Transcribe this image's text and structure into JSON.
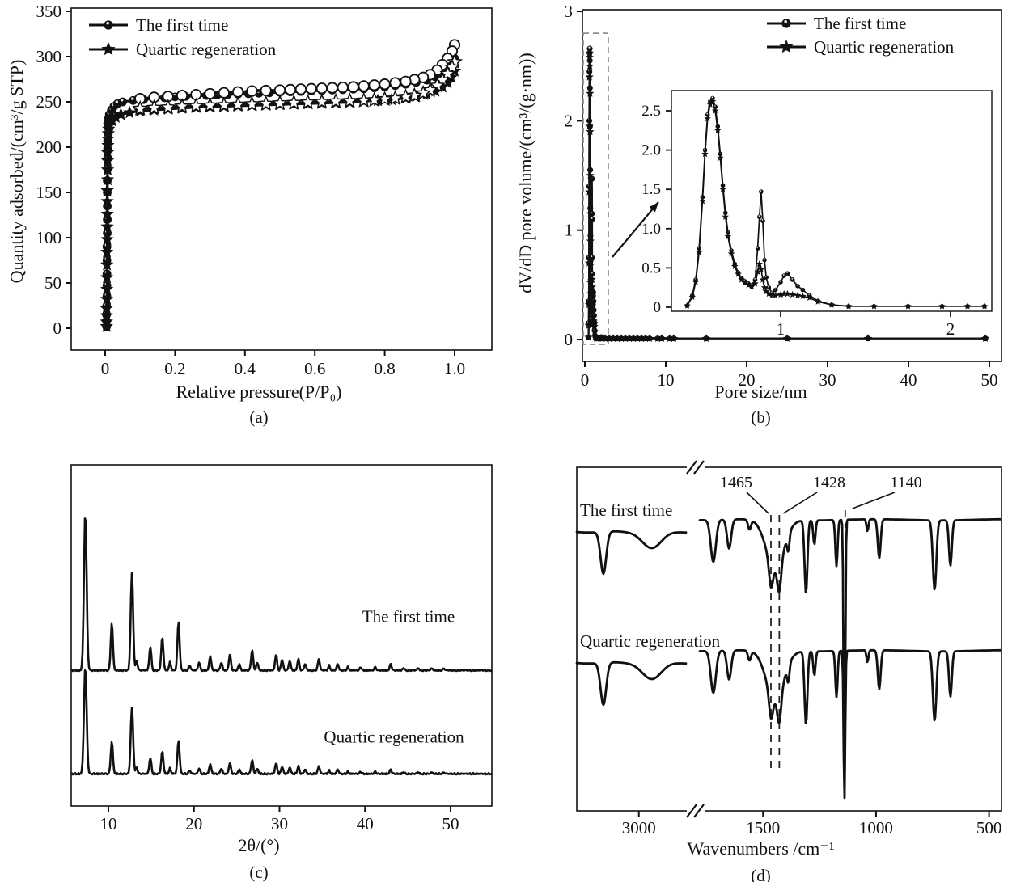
{
  "figure": {
    "panel_captions": [
      "(a)",
      "(b)",
      "(c)",
      "(d)"
    ],
    "ink_color": "#111111",
    "dash_box_color": "#8f8f8f"
  },
  "chart_data": [
    {
      "panel": "a",
      "type": "line",
      "caption": "(a)",
      "xlabel": "Relative pressure(P/P₀)",
      "ylabel": "Quantity adsorbed/(cm³/g STP)",
      "xticks": [
        0,
        0.2,
        0.4,
        0.6,
        0.8,
        1.0
      ],
      "xtick_labels": [
        "0",
        "0.2",
        "0.4",
        "0.6",
        "0.8",
        "1.0"
      ],
      "yticks": [
        0,
        50,
        100,
        150,
        200,
        250,
        300,
        350
      ],
      "xlim": [
        -0.1,
        1.11
      ],
      "ylim": [
        -25,
        355
      ],
      "legend": [
        {
          "label": "The first time",
          "marker": "circle"
        },
        {
          "label": "Quartic regeneration",
          "marker": "star"
        }
      ],
      "series": [
        {
          "name": "The first time (adsorption)",
          "marker": "circle",
          "x": [
            0.004,
            0.004,
            0.004,
            0.004,
            0.005,
            0.005,
            0.005,
            0.005,
            0.005,
            0.006,
            0.006,
            0.006,
            0.006,
            0.006,
            0.007,
            0.007,
            0.007,
            0.007,
            0.008,
            0.008,
            0.009,
            0.01,
            0.012,
            0.018,
            0.025,
            0.035,
            0.05,
            0.08,
            0.11,
            0.14,
            0.17,
            0.2,
            0.23,
            0.26,
            0.29,
            0.32,
            0.35,
            0.38,
            0.41,
            0.44,
            0.47,
            0.5,
            0.53,
            0.56,
            0.59,
            0.62,
            0.65,
            0.68,
            0.71,
            0.74,
            0.77,
            0.8,
            0.83,
            0.86,
            0.89,
            0.92,
            0.945,
            0.965,
            0.98,
            0.99,
            1.0
          ],
          "y": [
            2,
            8,
            15,
            24,
            35,
            47,
            60,
            75,
            90,
            105,
            120,
            135,
            150,
            163,
            176,
            188,
            198,
            207,
            215,
            222,
            228,
            232,
            236,
            241,
            245,
            248,
            250,
            251.5,
            252.5,
            253.5,
            254.5,
            255.5,
            256,
            256.5,
            257,
            257.5,
            258,
            258.5,
            259,
            259.5,
            260,
            260.5,
            261,
            261.5,
            262,
            262.5,
            263,
            263.5,
            264,
            264.5,
            265.5,
            266.5,
            268,
            269.5,
            271.5,
            274,
            277.5,
            282,
            287,
            292,
            298
          ]
        },
        {
          "name": "The first time (desorption)",
          "marker": "circle-open",
          "x": [
            1.0,
            0.993,
            0.98,
            0.965,
            0.95,
            0.93,
            0.91,
            0.885,
            0.86,
            0.83,
            0.8,
            0.77,
            0.74,
            0.71,
            0.68,
            0.65,
            0.62,
            0.59,
            0.56,
            0.53,
            0.5,
            0.46,
            0.42,
            0.38,
            0.34,
            0.3,
            0.26,
            0.22,
            0.18,
            0.14,
            0.1
          ],
          "y": [
            313,
            306,
            298,
            291,
            285,
            280,
            277,
            274.5,
            272.5,
            271,
            269.5,
            268.5,
            267.5,
            266.5,
            266,
            265.5,
            265,
            264.5,
            264,
            263.5,
            263,
            262.5,
            262,
            261,
            260,
            259,
            258,
            257,
            256,
            255,
            253.5
          ]
        },
        {
          "name": "Quartic regeneration (adsorption)",
          "marker": "star",
          "x": [
            0.004,
            0.004,
            0.004,
            0.004,
            0.005,
            0.005,
            0.005,
            0.005,
            0.005,
            0.006,
            0.006,
            0.006,
            0.006,
            0.006,
            0.007,
            0.007,
            0.007,
            0.007,
            0.008,
            0.008,
            0.009,
            0.01,
            0.012,
            0.02,
            0.03,
            0.045,
            0.07,
            0.1,
            0.14,
            0.18,
            0.22,
            0.26,
            0.3,
            0.34,
            0.38,
            0.42,
            0.46,
            0.5,
            0.54,
            0.58,
            0.62,
            0.66,
            0.7,
            0.74,
            0.78,
            0.82,
            0.86,
            0.89,
            0.92,
            0.945,
            0.965,
            0.98,
            0.99,
            1.0
          ],
          "y": [
            2,
            7,
            14,
            22,
            32,
            43,
            56,
            70,
            84,
            98,
            112,
            126,
            140,
            152,
            164,
            175,
            185,
            194,
            202,
            209,
            215,
            220,
            224,
            229,
            233,
            236,
            238,
            240,
            241,
            242,
            243,
            244,
            244.5,
            245,
            245.5,
            246,
            246.5,
            247,
            247.5,
            248,
            248.5,
            249,
            249.5,
            250.5,
            251.5,
            252.5,
            254,
            256,
            258.5,
            262,
            266.5,
            271,
            277,
            284
          ]
        },
        {
          "name": "Quartic regeneration (desorption)",
          "marker": "star-open",
          "x": [
            1.0,
            0.993,
            0.98,
            0.965,
            0.95,
            0.93,
            0.91,
            0.885,
            0.86,
            0.83,
            0.8,
            0.77,
            0.74,
            0.7,
            0.66,
            0.62,
            0.58,
            0.54,
            0.5,
            0.46,
            0.42,
            0.38,
            0.34,
            0.3,
            0.26,
            0.22,
            0.18,
            0.14,
            0.1
          ],
          "y": [
            294,
            288,
            281,
            274,
            268,
            263,
            259.5,
            257,
            255.5,
            254,
            253,
            252,
            251.5,
            251,
            250.5,
            250,
            249.5,
            249,
            248.5,
            248,
            247.5,
            247,
            246.5,
            246,
            245.5,
            245,
            244,
            243.5,
            242.5
          ]
        }
      ]
    },
    {
      "panel": "b",
      "type": "line",
      "caption": "(b)",
      "xlabel": "Pore size/nm",
      "ylabel": "dV/dD pore volume/(cm³/(g·nm))",
      "xticks": [
        0,
        10,
        20,
        30,
        40,
        50
      ],
      "yticks": [
        0,
        1,
        2,
        3
      ],
      "xlim": [
        -0.3,
        53
      ],
      "ylim": [
        -0.2,
        3.0
      ],
      "legend": [
        {
          "label": "The first time",
          "marker": "circle"
        },
        {
          "label": "Quartic regeneration",
          "marker": "star"
        }
      ],
      "series": [
        {
          "name": "The first time",
          "marker": "circle",
          "x": [
            0.45,
            0.48,
            0.5,
            0.52,
            0.54,
            0.555,
            0.57,
            0.585,
            0.6,
            0.615,
            0.63,
            0.645,
            0.66,
            0.675,
            0.69,
            0.71,
            0.73,
            0.75,
            0.77,
            0.79,
            0.81,
            0.83,
            0.85,
            0.865,
            0.875,
            0.885,
            0.895,
            0.905,
            0.915,
            0.93,
            0.95,
            0.97,
            1.0,
            1.02,
            1.04,
            1.07,
            1.1,
            1.13,
            1.17,
            1.22,
            1.3,
            1.4,
            1.55,
            1.75,
            1.95,
            2.1,
            2.2,
            2.5,
            3,
            3.5,
            4,
            4.5,
            5,
            5.5,
            6,
            6.5,
            7,
            7.5,
            8,
            9,
            9.5,
            10.5,
            11,
            15,
            25,
            35,
            49.5
          ],
          "y": [
            0.02,
            0.15,
            0.35,
            0.75,
            1.4,
            2.0,
            2.45,
            2.62,
            2.66,
            2.55,
            2.3,
            1.95,
            1.55,
            1.2,
            0.95,
            0.72,
            0.55,
            0.44,
            0.37,
            0.33,
            0.3,
            0.28,
            0.35,
            0.75,
            1.15,
            1.47,
            1.1,
            0.6,
            0.38,
            0.25,
            0.18,
            0.22,
            0.32,
            0.4,
            0.43,
            0.35,
            0.27,
            0.22,
            0.15,
            0.08,
            0.03,
            0.012,
            0.012,
            0.012,
            0.012,
            0.012,
            0.012,
            0.01,
            0.01,
            0.01,
            0.01,
            0.01,
            0.01,
            0.01,
            0.01,
            0.01,
            0.01,
            0.01,
            0.01,
            0.01,
            0.01,
            0.01,
            0.01,
            0.01,
            0.01,
            0.01,
            0.01
          ]
        },
        {
          "name": "Quartic regeneration",
          "marker": "star",
          "x": [
            0.45,
            0.48,
            0.5,
            0.52,
            0.54,
            0.555,
            0.57,
            0.585,
            0.6,
            0.615,
            0.63,
            0.645,
            0.66,
            0.675,
            0.69,
            0.71,
            0.73,
            0.75,
            0.77,
            0.79,
            0.81,
            0.83,
            0.85,
            0.865,
            0.875,
            0.885,
            0.895,
            0.905,
            0.915,
            0.93,
            0.95,
            0.97,
            1.0,
            1.02,
            1.04,
            1.07,
            1.1,
            1.13,
            1.17,
            1.22,
            1.3,
            1.4,
            1.55,
            1.75,
            1.95,
            2.1,
            2.2,
            2.5,
            3,
            3.5,
            4,
            4.5,
            5,
            5.5,
            6,
            6.5,
            7,
            7.5,
            8,
            9,
            9.5,
            10.5,
            11,
            15,
            25,
            35,
            49.5
          ],
          "y": [
            0.02,
            0.13,
            0.32,
            0.7,
            1.35,
            1.95,
            2.4,
            2.58,
            2.62,
            2.5,
            2.25,
            1.9,
            1.5,
            1.15,
            0.9,
            0.68,
            0.52,
            0.42,
            0.35,
            0.31,
            0.28,
            0.26,
            0.3,
            0.45,
            0.55,
            0.48,
            0.35,
            0.25,
            0.2,
            0.17,
            0.15,
            0.15,
            0.16,
            0.17,
            0.17,
            0.16,
            0.15,
            0.14,
            0.12,
            0.07,
            0.03,
            0.012,
            0.012,
            0.012,
            0.012,
            0.012,
            0.012,
            0.01,
            0.01,
            0.01,
            0.01,
            0.01,
            0.01,
            0.01,
            0.01,
            0.01,
            0.01,
            0.01,
            0.01,
            0.01,
            0.01,
            0.01,
            0.01,
            0.01,
            0.01,
            0.01,
            0.01
          ]
        }
      ],
      "inset": {
        "xticks": [
          1,
          2
        ],
        "ytick_labels": [
          "0",
          "0.5",
          "1.0",
          "1.5",
          "2.0",
          "2.5"
        ],
        "ytick_values": [
          0,
          0.5,
          1.0,
          1.5,
          2.0,
          2.5
        ],
        "xlim": [
          0.36,
          2.24
        ],
        "ylim": [
          0,
          2.76
        ],
        "zoom_region_x": [
          0,
          2.7
        ],
        "zoom_region_y": [
          0,
          2.8
        ]
      }
    },
    {
      "panel": "c",
      "type": "line",
      "caption": "(c)",
      "xlabel": "2θ/(°)",
      "xticks": [
        10,
        20,
        30,
        40,
        50
      ],
      "xlim": [
        5.5,
        50
      ],
      "traces": [
        {
          "label": "The first time",
          "relative_intensity": 1.0
        },
        {
          "label": "Quartic regeneration",
          "relative_intensity": 0.68
        }
      ],
      "peaks": [
        [
          7.3,
          1.0
        ],
        [
          10.4,
          0.3
        ],
        [
          12.75,
          0.62
        ],
        [
          13.3,
          0.06
        ],
        [
          14.9,
          0.15
        ],
        [
          16.3,
          0.21
        ],
        [
          17.2,
          0.05
        ],
        [
          18.2,
          0.31
        ],
        [
          19.5,
          0.03
        ],
        [
          20.6,
          0.05
        ],
        [
          21.9,
          0.09
        ],
        [
          23.2,
          0.05
        ],
        [
          24.2,
          0.1
        ],
        [
          25.3,
          0.04
        ],
        [
          26.8,
          0.13
        ],
        [
          27.4,
          0.05
        ],
        [
          29.6,
          0.1
        ],
        [
          30.3,
          0.07
        ],
        [
          31.2,
          0.06
        ],
        [
          32.2,
          0.07
        ],
        [
          33.0,
          0.04
        ],
        [
          34.6,
          0.07
        ],
        [
          35.8,
          0.03
        ],
        [
          36.8,
          0.04
        ],
        [
          38.0,
          0.02
        ],
        [
          39.5,
          0.02
        ],
        [
          41.2,
          0.02
        ],
        [
          43.0,
          0.04
        ],
        [
          44.5,
          0.015
        ],
        [
          46.2,
          0.015
        ],
        [
          47.8,
          0.012
        ],
        [
          49.2,
          0.012
        ]
      ]
    },
    {
      "panel": "d",
      "type": "line",
      "caption": "(d)",
      "xlabel": "Wavenumbers /cm⁻¹",
      "xticks": [
        3000,
        1500,
        1000,
        500
      ],
      "axis_break": true,
      "annotations": [
        "1465",
        "1428",
        "1140"
      ],
      "annotation_wavenumbers": [
        1465,
        1428,
        1140
      ],
      "traces": [
        {
          "label": "The first time",
          "dips": [
            [
              3400,
              52,
              45
            ],
            [
              2850,
              20,
              150
            ],
            [
              1720,
              52,
              16
            ],
            [
              1650,
              36,
              13
            ],
            [
              1560,
              12,
              9
            ],
            [
              1447,
              60,
              55
            ],
            [
              1465,
              30,
              12
            ],
            [
              1428,
              36,
              12
            ],
            [
              1388,
              20,
              7
            ],
            [
              1310,
              90,
              9
            ],
            [
              1273,
              30,
              7
            ],
            [
              1175,
              57,
              7
            ],
            [
              1140,
              347,
              5
            ],
            [
              1038,
              15,
              6
            ],
            [
              986,
              48,
              9
            ],
            [
              741,
              86,
              11
            ],
            [
              671,
              56,
              9
            ]
          ]
        },
        {
          "label": "Quartic regeneration",
          "dips": [
            [
              3400,
              52,
              45
            ],
            [
              2850,
              20,
              150
            ],
            [
              1720,
              52,
              16
            ],
            [
              1650,
              36,
              13
            ],
            [
              1560,
              12,
              9
            ],
            [
              1447,
              60,
              55
            ],
            [
              1465,
              30,
              12
            ],
            [
              1428,
              36,
              12
            ],
            [
              1388,
              20,
              7
            ],
            [
              1310,
              90,
              9
            ],
            [
              1273,
              30,
              7
            ],
            [
              1175,
              57,
              7
            ],
            [
              1140,
              185,
              5
            ],
            [
              1038,
              15,
              6
            ],
            [
              986,
              48,
              9
            ],
            [
              741,
              86,
              11
            ],
            [
              671,
              56,
              9
            ]
          ]
        }
      ]
    }
  ]
}
